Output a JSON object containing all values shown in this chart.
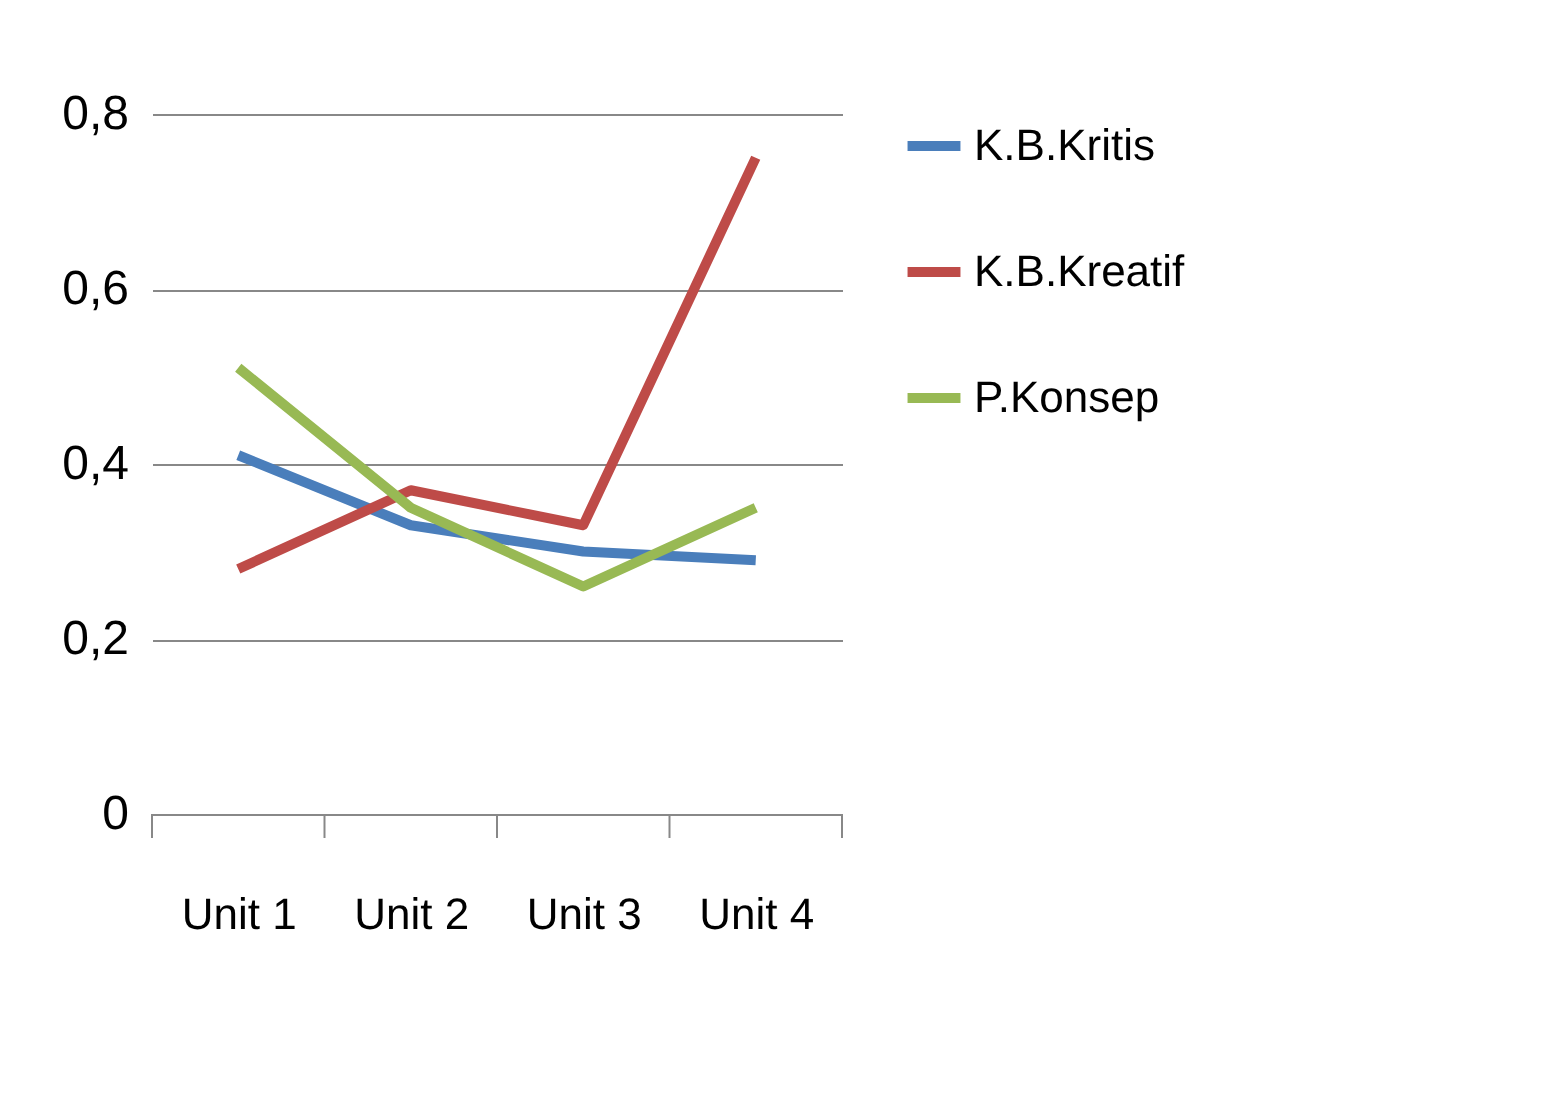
{
  "chart_data": {
    "type": "line",
    "categories": [
      "Unit 1",
      "Unit 2",
      "Unit 3",
      "Unit 4"
    ],
    "series": [
      {
        "name": "K.B.Kritis",
        "color": "#4a7ebb",
        "values": [
          0.41,
          0.33,
          0.3,
          0.29
        ]
      },
      {
        "name": "K.B.Kreatif",
        "color": "#be4b48",
        "values": [
          0.28,
          0.37,
          0.33,
          0.75
        ]
      },
      {
        "name": "P.Konsep",
        "color": "#98b954",
        "values": [
          0.51,
          0.35,
          0.26,
          0.35
        ]
      }
    ],
    "ylim": [
      0,
      0.8
    ],
    "yticks": [
      {
        "value": 0,
        "label": "0"
      },
      {
        "value": 0.2,
        "label": "0,2"
      },
      {
        "value": 0.4,
        "label": "0,4"
      },
      {
        "value": 0.6,
        "label": "0,6"
      },
      {
        "value": 0.8,
        "label": "0,8"
      }
    ],
    "grid": "y",
    "legend": "right",
    "marker": "none",
    "line_style": "solid"
  }
}
